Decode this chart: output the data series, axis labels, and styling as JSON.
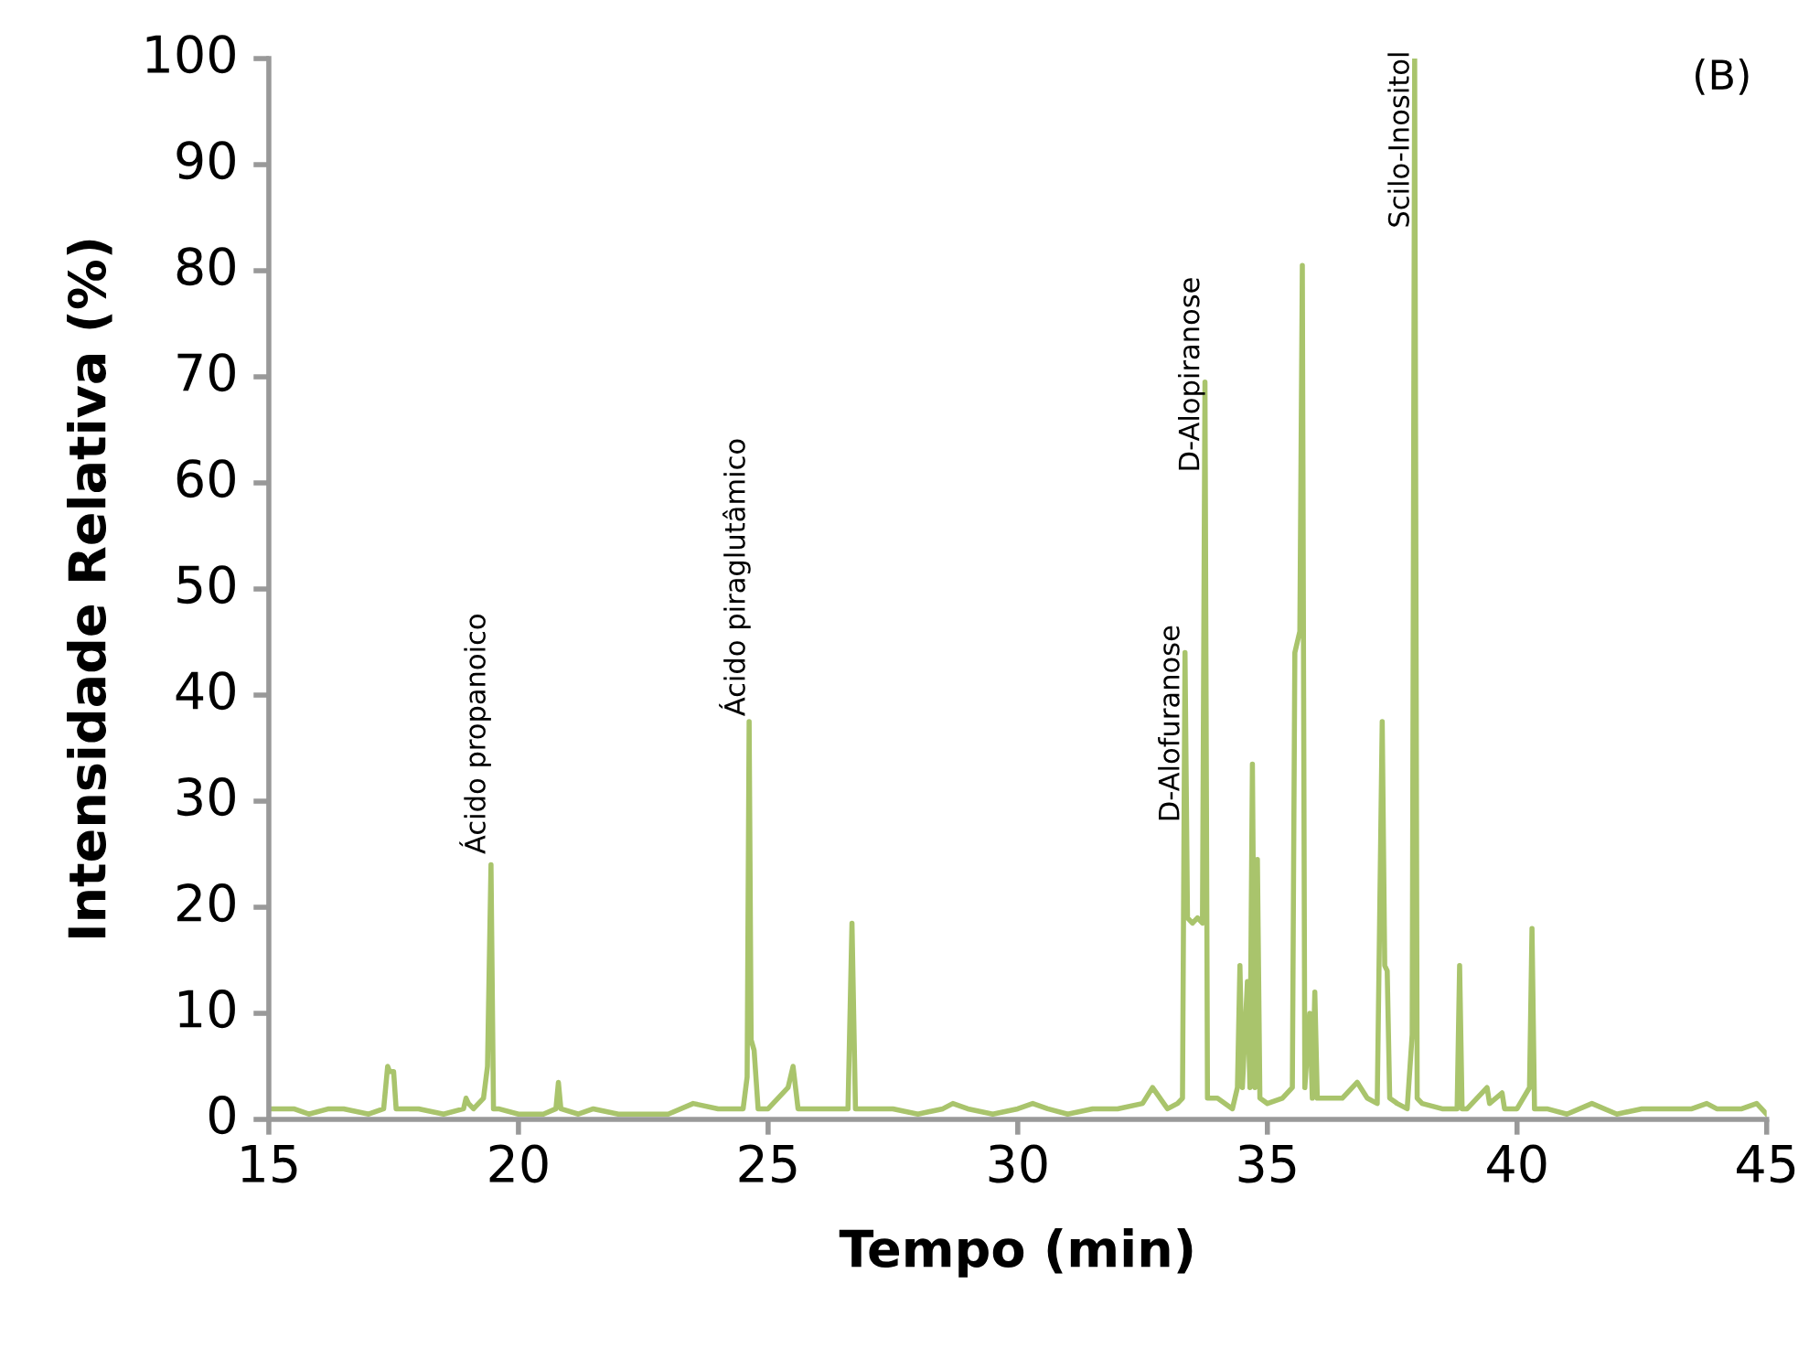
{
  "chart_data": {
    "type": "line",
    "xlabel": "Tempo (min)",
    "ylabel": "Intensidade Relativa (%)",
    "xlim": [
      15,
      45
    ],
    "xticks": [
      15,
      20,
      25,
      30,
      35,
      40,
      45
    ],
    "ylim": [
      0,
      100
    ],
    "yticks": [
      0,
      10,
      20,
      30,
      40,
      50,
      60,
      70,
      80,
      90,
      100
    ],
    "grid": false,
    "legend": false,
    "marker": "none",
    "line_style": "solid",
    "series": [
      {
        "color": "#a9c46c",
        "x": [
          15,
          15.5,
          15.8,
          16.2,
          16.5,
          17.0,
          17.3,
          17.38,
          17.42,
          17.5,
          17.55,
          18.0,
          18.5,
          18.9,
          18.95,
          19.0,
          19.1,
          19.3,
          19.38,
          19.45,
          19.5,
          19.6,
          20.0,
          20.5,
          20.75,
          20.8,
          20.85,
          21.2,
          21.5,
          22.0,
          22.5,
          23.0,
          23.5,
          24.0,
          24.5,
          24.58,
          24.62,
          24.66,
          24.72,
          24.8,
          25.0,
          25.4,
          25.5,
          25.6,
          26.0,
          26.6,
          26.68,
          26.75,
          27.0,
          27.5,
          28.0,
          28.5,
          28.7,
          29.0,
          29.5,
          30.0,
          30.3,
          30.6,
          31.0,
          31.5,
          32.0,
          32.5,
          32.7,
          33.0,
          33.2,
          33.3,
          33.35,
          33.4,
          33.5,
          33.6,
          33.7,
          33.75,
          33.8,
          34.0,
          34.3,
          34.4,
          34.45,
          34.5,
          34.6,
          34.65,
          34.7,
          34.75,
          34.8,
          34.85,
          35.0,
          35.3,
          35.5,
          35.55,
          35.65,
          35.7,
          35.75,
          35.85,
          35.9,
          35.95,
          36.0,
          36.5,
          36.8,
          37.0,
          37.2,
          37.3,
          37.35,
          37.4,
          37.45,
          37.6,
          37.8,
          37.9,
          37.95,
          38.0,
          38.1,
          38.5,
          38.8,
          38.85,
          38.9,
          39.0,
          39.4,
          39.45,
          39.7,
          39.75,
          40.0,
          40.25,
          40.3,
          40.35,
          40.6,
          41.0,
          41.5,
          42.0,
          42.5,
          43.0,
          43.5,
          43.8,
          44.0,
          44.5,
          44.8,
          45
        ],
        "values": [
          1,
          1,
          0.5,
          1,
          1,
          0.5,
          1,
          5,
          4.5,
          4.5,
          1,
          1,
          0.5,
          1,
          2,
          1.5,
          1,
          2,
          5,
          24,
          1,
          1,
          0.5,
          0.5,
          1,
          3.5,
          1,
          0.5,
          1,
          0.5,
          0.5,
          0.5,
          1.5,
          1,
          1,
          4,
          37.5,
          7.5,
          6.5,
          1,
          1,
          3,
          5,
          1,
          1,
          1,
          18.5,
          1,
          1,
          1,
          0.5,
          1,
          1.5,
          1,
          0.5,
          1,
          1.5,
          1,
          0.5,
          1,
          1,
          1.5,
          3,
          1,
          1.5,
          2,
          44,
          19,
          18.5,
          19,
          18.5,
          69.5,
          2,
          2,
          1,
          3,
          14.5,
          3,
          13,
          3,
          33.5,
          3,
          24.5,
          2,
          1.5,
          2,
          3,
          44,
          46,
          80.5,
          3,
          10,
          2,
          12,
          2,
          2,
          3.5,
          2,
          1.5,
          37.5,
          14.5,
          14,
          2,
          1.5,
          1,
          8,
          100,
          2,
          1.5,
          1,
          1,
          14.5,
          1,
          1,
          3,
          1.5,
          2.5,
          1,
          1,
          3,
          18,
          1,
          1,
          0.5,
          1.5,
          0.5,
          1,
          1,
          1,
          1.5,
          1,
          1,
          1.5,
          0.5
        ]
      }
    ],
    "annotations": [
      {
        "text": "Ácido propanoico",
        "x": 19.45,
        "y": 25
      },
      {
        "text": "Ácido piraglutâmico",
        "x": 24.65,
        "y": 38
      },
      {
        "text": "D-Alofuranose",
        "x": 33.35,
        "y": 28
      },
      {
        "text": "D-Alopiranose",
        "x": 33.75,
        "y": 61
      },
      {
        "text": "Scilo-Inositol",
        "x": 37.95,
        "y": 84
      },
      "(B)"
    ]
  }
}
